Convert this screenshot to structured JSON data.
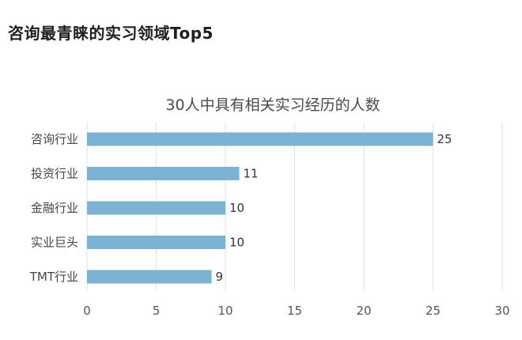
{
  "page": {
    "heading": "咨询最青睐的实习领域Top5"
  },
  "chart_data": {
    "type": "bar",
    "orientation": "horizontal",
    "title": "30人中具有相关实习经历的人数",
    "categories": [
      "咨询行业",
      "投资行业",
      "金融行业",
      "实业巨头",
      "TMT行业"
    ],
    "values": [
      25,
      11,
      10,
      10,
      9
    ],
    "xlim": [
      0,
      30
    ],
    "x_ticks": [
      0,
      5,
      10,
      15,
      20,
      25,
      30
    ],
    "grid": "vertical",
    "legend": "none",
    "bar_color": "#7ab3d4",
    "grid_color": "#e2e2e2"
  }
}
